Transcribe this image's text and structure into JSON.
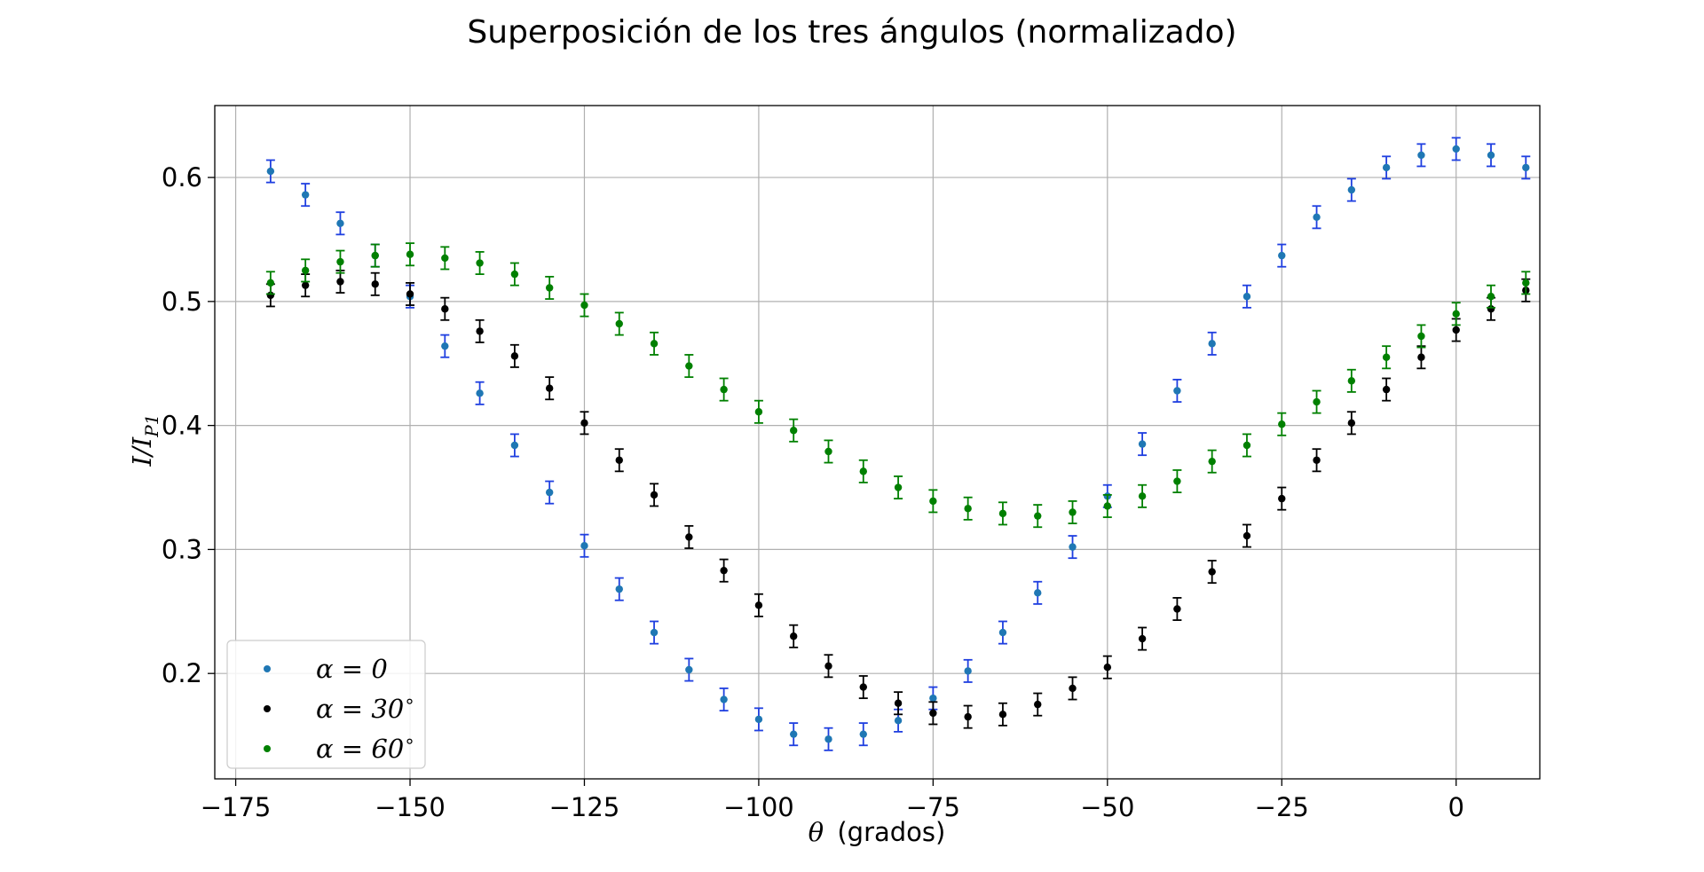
{
  "chart_data": {
    "type": "scatter",
    "title": "Superposición de los tres ángulos (normalizado)",
    "xlabel": "θ (grados)",
    "ylabel": "I/I_P1",
    "ylabel_main": "I/I",
    "ylabel_sub": "P1",
    "xlim": [
      -178,
      12
    ],
    "ylim": [
      0.115,
      0.658
    ],
    "xticks": [
      -175,
      -150,
      -125,
      -100,
      -75,
      -50,
      -25,
      0
    ],
    "xtick_labels": [
      "−175",
      "−150",
      "−125",
      "−100",
      "−75",
      "−50",
      "−25",
      "0"
    ],
    "yticks": [
      0.2,
      0.3,
      0.4,
      0.5,
      0.6
    ],
    "ytick_labels": [
      "0.2",
      "0.3",
      "0.4",
      "0.5",
      "0.6"
    ],
    "grid": true,
    "legend_position": "lower-left",
    "x": [
      -170,
      -165,
      -160,
      -155,
      -150,
      -145,
      -140,
      -135,
      -130,
      -125,
      -120,
      -115,
      -110,
      -105,
      -100,
      -95,
      -90,
      -85,
      -80,
      -75,
      -70,
      -65,
      -60,
      -55,
      -50,
      -45,
      -40,
      -35,
      -30,
      -25,
      -20,
      -15,
      -10,
      -5,
      0,
      5,
      10
    ],
    "series": [
      {
        "name": "α = 0",
        "legend_main": "α = 0",
        "legend_sup": "",
        "marker_color": "#1f77b4",
        "errorbar_color": "#1f3fe0",
        "values": [
          0.605,
          0.586,
          0.563,
          0.537,
          0.504,
          0.464,
          0.426,
          0.384,
          0.346,
          0.303,
          0.268,
          0.233,
          0.203,
          0.179,
          0.163,
          0.151,
          0.147,
          0.151,
          0.162,
          0.18,
          0.202,
          0.233,
          0.265,
          0.302,
          0.343,
          0.385,
          0.428,
          0.466,
          0.504,
          0.537,
          0.568,
          0.59,
          0.608,
          0.618,
          0.623,
          0.618,
          0.608
        ],
        "error": 0.009
      },
      {
        "name": "α = 30°",
        "legend_main": "α = 30",
        "legend_sup": "∘",
        "marker_color": "#000000",
        "errorbar_color": "#000000",
        "values": [
          0.505,
          0.513,
          0.516,
          0.514,
          0.506,
          0.494,
          0.476,
          0.456,
          0.43,
          0.402,
          0.372,
          0.344,
          0.31,
          0.283,
          0.255,
          0.23,
          0.206,
          0.189,
          0.176,
          0.168,
          0.165,
          0.167,
          0.175,
          0.188,
          0.205,
          0.228,
          0.252,
          0.282,
          0.311,
          0.341,
          0.372,
          0.402,
          0.429,
          0.455,
          0.477,
          0.494,
          0.509
        ],
        "error": 0.009
      },
      {
        "name": "α = 60°",
        "legend_main": "α = 60",
        "legend_sup": "∘",
        "marker_color": "#008000",
        "errorbar_color": "#008000",
        "values": [
          0.515,
          0.525,
          0.532,
          0.537,
          0.538,
          0.535,
          0.531,
          0.522,
          0.511,
          0.497,
          0.482,
          0.466,
          0.448,
          0.429,
          0.411,
          0.396,
          0.379,
          0.363,
          0.35,
          0.339,
          0.333,
          0.329,
          0.327,
          0.33,
          0.335,
          0.343,
          0.355,
          0.371,
          0.384,
          0.401,
          0.419,
          0.436,
          0.455,
          0.472,
          0.49,
          0.504,
          0.515
        ],
        "error": 0.009
      }
    ]
  }
}
